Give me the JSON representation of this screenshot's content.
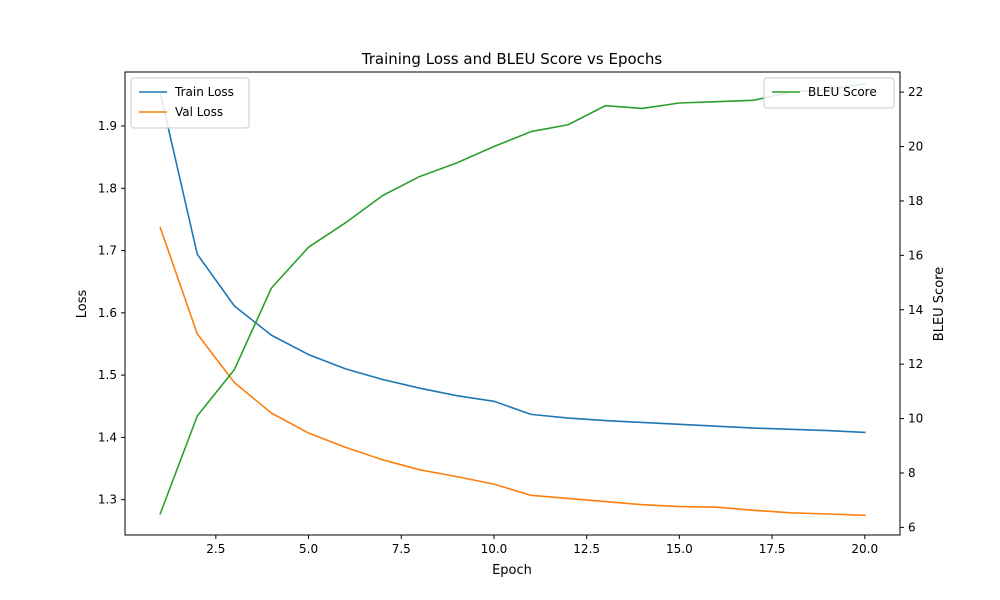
{
  "chart_data": {
    "type": "line",
    "title": "Training Loss and BLEU Score vs Epochs",
    "xlabel": "Epoch",
    "ylabel": "Loss",
    "ylabel_right": "BLEU Score",
    "xlim": [
      0.05,
      20.95
    ],
    "ylim": [
      1.2433,
      1.9867
    ],
    "ylim_right": [
      5.72,
      22.74
    ],
    "xticks": [
      2.5,
      5.0,
      7.5,
      10.0,
      12.5,
      15.0,
      17.5,
      20.0
    ],
    "xtick_labels": [
      "2.5",
      "5.0",
      "7.5",
      "10.0",
      "12.5",
      "15.0",
      "17.5",
      "20.0"
    ],
    "yticks": [
      1.3,
      1.4,
      1.5,
      1.6,
      1.7,
      1.8,
      1.9
    ],
    "ytick_labels": [
      "1.3",
      "1.4",
      "1.5",
      "1.6",
      "1.7",
      "1.8",
      "1.9"
    ],
    "yticks_right": [
      6,
      8,
      10,
      12,
      14,
      16,
      18,
      20,
      22
    ],
    "ytick_labels_right": [
      "6",
      "8",
      "10",
      "12",
      "14",
      "16",
      "18",
      "20",
      "22"
    ],
    "x": [
      1,
      2,
      3,
      4,
      5,
      6,
      7,
      8,
      9,
      10,
      11,
      12,
      13,
      14,
      15,
      16,
      17,
      18,
      19,
      20
    ],
    "series": [
      {
        "name": "Train Loss",
        "axis": "left",
        "color": "#1f77b4",
        "values": [
          1.953,
          1.694,
          1.611,
          1.564,
          1.533,
          1.51,
          1.493,
          1.479,
          1.467,
          1.458,
          1.437,
          1.431,
          1.427,
          1.424,
          1.421,
          1.418,
          1.415,
          1.413,
          1.411,
          1.408
        ]
      },
      {
        "name": "Val Loss",
        "axis": "left",
        "color": "#ff7f0e",
        "values": [
          1.737,
          1.566,
          1.488,
          1.439,
          1.407,
          1.384,
          1.364,
          1.348,
          1.337,
          1.325,
          1.307,
          1.302,
          1.297,
          1.292,
          1.289,
          1.288,
          1.283,
          1.279,
          1.277,
          1.275
        ]
      },
      {
        "name": "BLEU Score",
        "axis": "right",
        "color": "#2ca02c",
        "values": [
          6.5,
          10.1,
          11.8,
          14.8,
          16.3,
          17.2,
          18.2,
          18.9,
          19.4,
          20.0,
          20.55,
          20.8,
          21.5,
          21.4,
          21.6,
          21.65,
          21.7,
          22.0,
          22.1,
          22.3
        ]
      }
    ],
    "legend_left": {
      "placement": "upper left",
      "entries": [
        "Train Loss",
        "Val Loss"
      ]
    },
    "legend_right": {
      "placement": "upper right",
      "entries": [
        "BLEU Score"
      ]
    },
    "grid": false
  }
}
